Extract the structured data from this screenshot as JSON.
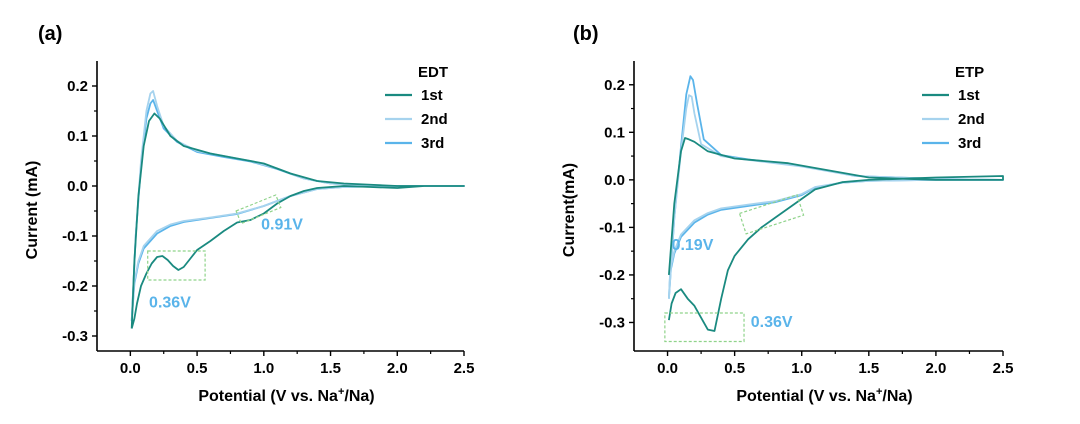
{
  "chart_data": [
    {
      "type": "line",
      "panel_label": "(a)",
      "xlabel": "Potential (V vs. Na+/Na)",
      "xlabel_parts": {
        "before": "Potential (V vs. Na",
        "sup": "+",
        "after": "/Na)"
      },
      "ylabel": "Current (mA)",
      "xlim": [
        -0.25,
        2.5
      ],
      "ylim": [
        -0.33,
        0.25
      ],
      "xticks": [
        0.0,
        0.5,
        1.0,
        1.5,
        2.0,
        2.5
      ],
      "xtick_labels": [
        "0.0",
        "0.5",
        "1.0",
        "1.5",
        "2.0",
        "2.5"
      ],
      "yticks": [
        -0.3,
        -0.2,
        -0.1,
        0.0,
        0.1,
        0.2
      ],
      "ytick_labels": [
        "-0.3",
        "-0.2",
        "-0.1",
        "0.0",
        "0.1",
        "0.2"
      ],
      "legend_title": "EDT",
      "legend_position": "top-right",
      "series": [
        {
          "name": "1st",
          "color": "#1a8a80",
          "x": [
            0.01,
            0.03,
            0.06,
            0.1,
            0.14,
            0.18,
            0.22,
            0.3,
            0.4,
            0.6,
            0.8,
            1.0,
            1.2,
            1.4,
            1.6,
            2.0,
            2.5,
            2.5,
            2.2,
            2.0,
            1.8,
            1.6,
            1.5,
            1.4,
            1.3,
            1.2,
            1.1,
            1.0,
            0.9,
            0.8,
            0.7,
            0.6,
            0.5,
            0.45,
            0.4,
            0.36,
            0.32,
            0.28,
            0.24,
            0.2,
            0.16,
            0.12,
            0.08,
            0.05,
            0.03,
            0.01
          ],
          "y": [
            -0.285,
            -0.15,
            -0.02,
            0.08,
            0.13,
            0.145,
            0.135,
            0.1,
            0.08,
            0.065,
            0.055,
            0.045,
            0.025,
            0.01,
            0.005,
            0.0,
            0.0,
            0.0,
            0.0,
            -0.004,
            -0.002,
            0.0,
            -0.002,
            -0.004,
            -0.01,
            -0.02,
            -0.035,
            -0.055,
            -0.068,
            -0.073,
            -0.09,
            -0.11,
            -0.128,
            -0.145,
            -0.162,
            -0.168,
            -0.16,
            -0.148,
            -0.14,
            -0.142,
            -0.155,
            -0.175,
            -0.2,
            -0.235,
            -0.265,
            -0.285
          ]
        },
        {
          "name": "2nd",
          "color": "#a6d3ee",
          "x": [
            0.01,
            0.04,
            0.08,
            0.12,
            0.15,
            0.17,
            0.2,
            0.25,
            0.35,
            0.5,
            0.7,
            0.9,
            1.1,
            1.3,
            1.5,
            1.8,
            2.5,
            2.5,
            2.0,
            1.6,
            1.4,
            1.2,
            1.1,
            1.0,
            0.8,
            0.6,
            0.4,
            0.3,
            0.2,
            0.1,
            0.06,
            0.03,
            0.01
          ],
          "y": [
            -0.27,
            -0.1,
            0.05,
            0.15,
            0.185,
            0.19,
            0.16,
            0.12,
            0.09,
            0.07,
            0.06,
            0.05,
            0.035,
            0.015,
            0.005,
            0.0,
            0.0,
            0.0,
            0.0,
            -0.002,
            -0.006,
            -0.02,
            -0.03,
            -0.04,
            -0.055,
            -0.063,
            -0.07,
            -0.077,
            -0.09,
            -0.12,
            -0.15,
            -0.19,
            -0.27
          ]
        },
        {
          "name": "3rd",
          "color": "#5ab4ea",
          "x": [
            0.01,
            0.04,
            0.08,
            0.12,
            0.15,
            0.17,
            0.2,
            0.25,
            0.35,
            0.5,
            0.7,
            0.9,
            1.1,
            1.3,
            1.5,
            1.8,
            2.5,
            2.5,
            2.0,
            1.6,
            1.4,
            1.2,
            1.1,
            1.0,
            0.8,
            0.6,
            0.4,
            0.3,
            0.2,
            0.1,
            0.06,
            0.03,
            0.01
          ],
          "y": [
            -0.27,
            -0.1,
            0.04,
            0.135,
            0.165,
            0.172,
            0.15,
            0.115,
            0.088,
            0.068,
            0.058,
            0.049,
            0.034,
            0.015,
            0.005,
            0.0,
            0.0,
            0.0,
            0.0,
            -0.002,
            -0.006,
            -0.02,
            -0.03,
            -0.04,
            -0.056,
            -0.064,
            -0.072,
            -0.08,
            -0.095,
            -0.125,
            -0.155,
            -0.195,
            -0.27
          ]
        }
      ],
      "annotations": [
        {
          "text": "0.36V",
          "x": 0.14,
          "y": -0.243
        },
        {
          "text": "0.91V",
          "x": 0.98,
          "y": -0.087
        }
      ],
      "highlight_boxes": [
        {
          "x0": 0.13,
          "x1": 0.56,
          "y0": -0.188,
          "y1": -0.13
        },
        {
          "x0": 0.8,
          "x1": 1.12,
          "y0": -0.06,
          "y1": -0.033,
          "angle_deg": -22
        }
      ]
    },
    {
      "type": "line",
      "panel_label": "(b)",
      "xlabel": "Potential (V vs. Na+/Na)",
      "xlabel_parts": {
        "before": "Potential (V vs. Na",
        "sup": "+",
        "after": "/Na)"
      },
      "ylabel": "Current(mA)",
      "xlim": [
        -0.25,
        2.5
      ],
      "ylim": [
        -0.36,
        0.25
      ],
      "xticks": [
        0.0,
        0.5,
        1.0,
        1.5,
        2.0,
        2.5
      ],
      "xtick_labels": [
        "0.0",
        "0.5",
        "1.0",
        "1.5",
        "2.0",
        "2.5"
      ],
      "yticks": [
        -0.3,
        -0.2,
        -0.1,
        0.0,
        0.1,
        0.2
      ],
      "ytick_labels": [
        "-0.3",
        "-0.2",
        "-0.1",
        "0.0",
        "0.1",
        "0.2"
      ],
      "legend_title": "ETP",
      "legend_position": "top-right",
      "series": [
        {
          "name": "1st",
          "color": "#1a8a80",
          "x": [
            0.01,
            0.05,
            0.1,
            0.13,
            0.16,
            0.2,
            0.3,
            0.5,
            0.7,
            0.9,
            1.1,
            1.3,
            1.5,
            2.0,
            2.5,
            2.5,
            2.0,
            1.5,
            1.3,
            1.1,
            1.0,
            0.9,
            0.8,
            0.7,
            0.6,
            0.5,
            0.45,
            0.4,
            0.35,
            0.3,
            0.25,
            0.2,
            0.15,
            0.1,
            0.06,
            0.03,
            0.01
          ],
          "y": [
            -0.2,
            -0.05,
            0.06,
            0.088,
            0.085,
            0.08,
            0.06,
            0.045,
            0.04,
            0.035,
            0.025,
            0.015,
            0.005,
            0.0,
            0.0,
            0.008,
            0.005,
            0.0,
            -0.005,
            -0.02,
            -0.04,
            -0.06,
            -0.08,
            -0.1,
            -0.125,
            -0.16,
            -0.19,
            -0.25,
            -0.318,
            -0.315,
            -0.29,
            -0.265,
            -0.25,
            -0.23,
            -0.238,
            -0.26,
            -0.295
          ]
        },
        {
          "name": "2nd",
          "color": "#a6d3ee",
          "x": [
            0.01,
            0.05,
            0.1,
            0.14,
            0.16,
            0.18,
            0.2,
            0.25,
            0.4,
            0.6,
            0.8,
            1.0,
            1.2,
            1.4,
            2.0,
            2.5,
            2.5,
            2.0,
            1.5,
            1.3,
            1.1,
            1.0,
            0.8,
            0.6,
            0.4,
            0.3,
            0.2,
            0.1,
            0.05,
            0.02,
            0.01
          ],
          "y": [
            -0.25,
            -0.08,
            0.06,
            0.15,
            0.178,
            0.175,
            0.14,
            0.075,
            0.05,
            0.042,
            0.035,
            0.028,
            0.018,
            0.008,
            0.002,
            0.0,
            0.0,
            0.0,
            -0.002,
            -0.006,
            -0.015,
            -0.03,
            -0.045,
            -0.052,
            -0.06,
            -0.07,
            -0.085,
            -0.115,
            -0.15,
            -0.19,
            -0.25
          ]
        },
        {
          "name": "3rd",
          "color": "#5ab4ea",
          "x": [
            0.01,
            0.05,
            0.1,
            0.14,
            0.17,
            0.19,
            0.22,
            0.27,
            0.4,
            0.6,
            0.8,
            1.0,
            1.2,
            1.4,
            2.0,
            2.5,
            2.5,
            2.0,
            1.5,
            1.3,
            1.1,
            1.0,
            0.8,
            0.6,
            0.4,
            0.3,
            0.2,
            0.1,
            0.05,
            0.02,
            0.01
          ],
          "y": [
            -0.25,
            -0.08,
            0.07,
            0.18,
            0.218,
            0.21,
            0.16,
            0.085,
            0.052,
            0.043,
            0.036,
            0.029,
            0.019,
            0.008,
            0.002,
            0.0,
            0.0,
            0.0,
            -0.002,
            -0.006,
            -0.016,
            -0.032,
            -0.047,
            -0.055,
            -0.063,
            -0.073,
            -0.09,
            -0.12,
            -0.155,
            -0.195,
            -0.25
          ]
        }
      ],
      "annotations": [
        {
          "text": "0.19V",
          "x": 0.03,
          "y": -0.148
        },
        {
          "text": "0.36V",
          "x": 0.62,
          "y": -0.31
        }
      ],
      "highlight_boxes": [
        {
          "x0": -0.02,
          "x1": 0.57,
          "y0": -0.34,
          "y1": -0.28
        },
        {
          "x0": 0.55,
          "x1": 1.0,
          "y0": -0.095,
          "y1": -0.05,
          "angle_deg": -18
        }
      ]
    }
  ]
}
